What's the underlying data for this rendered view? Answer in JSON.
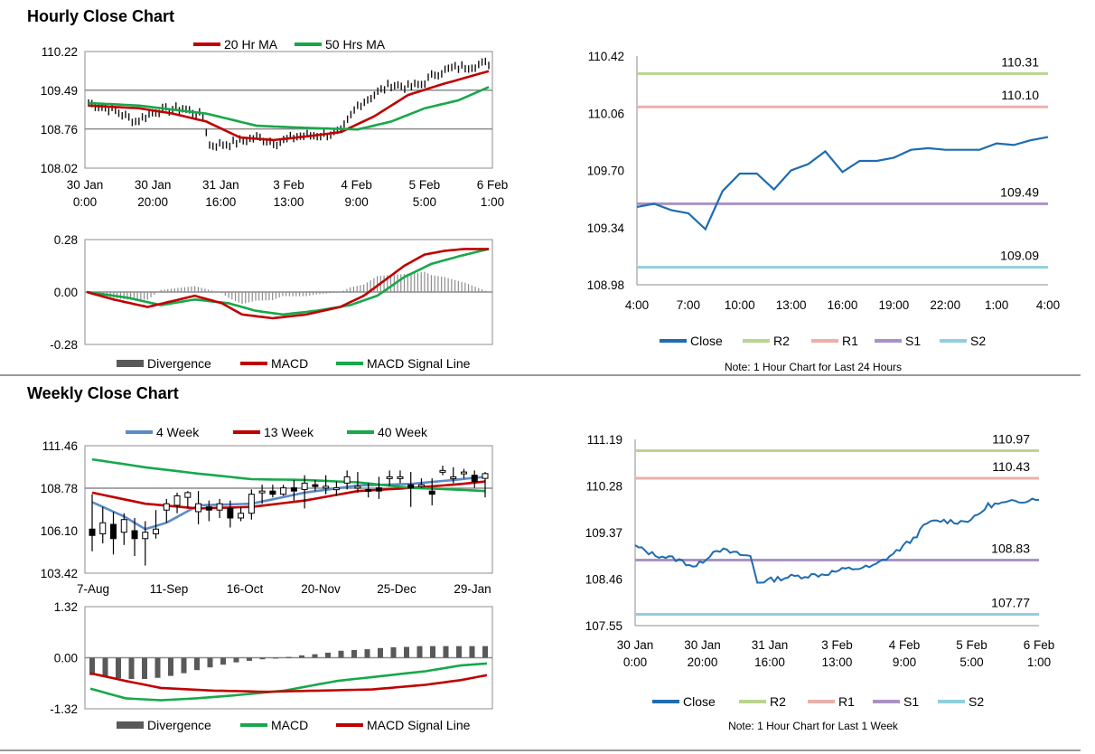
{
  "sections": {
    "hourly_title": "Hourly Close Chart",
    "weekly_title": "Weekly Close Chart"
  },
  "colors": {
    "close": "#1f6cb0",
    "r2": "#b9d48f",
    "r1": "#eab0aa",
    "s1": "#a992c4",
    "s2": "#8fd0dc",
    "ma_short": "#c00000",
    "ma_long": "#17a84a",
    "ma_4week": "#5b8bc6",
    "divergence": "#595959"
  },
  "chart_data": [
    {
      "id": "hourly_price",
      "type": "line",
      "title": "Hourly Close Chart",
      "legend": [
        "20 Hr MA",
        "50 Hrs MA"
      ],
      "x_tick_labels": [
        [
          "30 Jan",
          "0:00"
        ],
        [
          "30 Jan",
          "20:00"
        ],
        [
          "31 Jan",
          "16:00"
        ],
        [
          "3 Feb",
          "13:00"
        ],
        [
          "4 Feb",
          "9:00"
        ],
        [
          "5 Feb",
          "5:00"
        ],
        [
          "6 Feb",
          "1:00"
        ]
      ],
      "y_tick_labels": [
        "110.22",
        "109.49",
        "108.76",
        "108.02"
      ],
      "ylim": [
        108.02,
        110.22
      ],
      "n_points": 120,
      "close_keypoints": [
        [
          0,
          109.25
        ],
        [
          8,
          109.1
        ],
        [
          14,
          108.9
        ],
        [
          20,
          109.1
        ],
        [
          28,
          109.15
        ],
        [
          34,
          109.0
        ],
        [
          36,
          108.45
        ],
        [
          42,
          108.48
        ],
        [
          50,
          108.6
        ],
        [
          56,
          108.5
        ],
        [
          62,
          108.62
        ],
        [
          70,
          108.65
        ],
        [
          75,
          108.7
        ],
        [
          80,
          109.2
        ],
        [
          86,
          109.45
        ],
        [
          90,
          109.6
        ],
        [
          95,
          109.55
        ],
        [
          99,
          109.6
        ],
        [
          103,
          109.8
        ],
        [
          108,
          109.9
        ],
        [
          119,
          110.0
        ]
      ],
      "series": [
        {
          "name": "20 Hr MA",
          "keypoints": [
            [
              0,
              109.2
            ],
            [
              15,
              109.15
            ],
            [
              25,
              109.05
            ],
            [
              35,
              108.9
            ],
            [
              45,
              108.6
            ],
            [
              55,
              108.55
            ],
            [
              65,
              108.62
            ],
            [
              75,
              108.7
            ],
            [
              85,
              109.0
            ],
            [
              95,
              109.4
            ],
            [
              105,
              109.6
            ],
            [
              119,
              109.85
            ]
          ]
        },
        {
          "name": "50 Hrs MA",
          "keypoints": [
            [
              0,
              109.25
            ],
            [
              15,
              109.2
            ],
            [
              35,
              109.05
            ],
            [
              50,
              108.82
            ],
            [
              65,
              108.78
            ],
            [
              80,
              108.75
            ],
            [
              90,
              108.9
            ],
            [
              100,
              109.15
            ],
            [
              110,
              109.3
            ],
            [
              119,
              109.55
            ]
          ]
        }
      ]
    },
    {
      "id": "hourly_macd",
      "type": "line",
      "legend": [
        "Divergence",
        "MACD",
        "MACD Signal Line"
      ],
      "y_tick_labels": [
        "0.28",
        "0.00",
        "-0.28"
      ],
      "ylim": [
        -0.28,
        0.28
      ],
      "n_points": 120,
      "series": [
        {
          "name": "MACD",
          "keypoints": [
            [
              0,
              0.0
            ],
            [
              8,
              -0.04
            ],
            [
              18,
              -0.08
            ],
            [
              25,
              -0.05
            ],
            [
              32,
              -0.02
            ],
            [
              40,
              -0.06
            ],
            [
              46,
              -0.12
            ],
            [
              55,
              -0.14
            ],
            [
              65,
              -0.12
            ],
            [
              75,
              -0.08
            ],
            [
              82,
              -0.02
            ],
            [
              88,
              0.06
            ],
            [
              94,
              0.14
            ],
            [
              100,
              0.2
            ],
            [
              106,
              0.22
            ],
            [
              112,
              0.23
            ],
            [
              119,
              0.23
            ]
          ]
        },
        {
          "name": "MACD Signal Line",
          "keypoints": [
            [
              0,
              0.0
            ],
            [
              12,
              -0.03
            ],
            [
              22,
              -0.07
            ],
            [
              32,
              -0.04
            ],
            [
              42,
              -0.06
            ],
            [
              50,
              -0.1
            ],
            [
              58,
              -0.12
            ],
            [
              68,
              -0.1
            ],
            [
              78,
              -0.07
            ],
            [
              86,
              -0.02
            ],
            [
              94,
              0.08
            ],
            [
              102,
              0.15
            ],
            [
              110,
              0.19
            ],
            [
              119,
              0.23
            ]
          ]
        }
      ]
    },
    {
      "id": "hourly_24h",
      "type": "line",
      "x_tick_labels": [
        "4:00",
        "7:00",
        "10:00",
        "13:00",
        "16:00",
        "19:00",
        "22:00",
        "1:00",
        "4:00"
      ],
      "y_tick_labels": [
        "110.42",
        "110.06",
        "109.70",
        "109.34",
        "108.98"
      ],
      "ylim": [
        108.98,
        110.42
      ],
      "levels": [
        {
          "name": "R2",
          "label": "110.31",
          "value": 110.31
        },
        {
          "name": "R1",
          "label": "110.10",
          "value": 110.1
        },
        {
          "name": "S1",
          "label": "109.49",
          "value": 109.49
        },
        {
          "name": "S2",
          "label": "109.09",
          "value": 109.09
        }
      ],
      "close_values": [
        109.47,
        109.49,
        109.45,
        109.43,
        109.33,
        109.57,
        109.68,
        109.68,
        109.58,
        109.7,
        109.74,
        109.82,
        109.69,
        109.76,
        109.76,
        109.78,
        109.83,
        109.84,
        109.83,
        109.83,
        109.83,
        109.87,
        109.86,
        109.89,
        109.91
      ],
      "legend": [
        "Close",
        "R2",
        "R1",
        "S1",
        "S2"
      ],
      "note": "Note: 1 Hour Chart for Last 24 Hours"
    },
    {
      "id": "weekly_price",
      "type": "line",
      "title": "Weekly Close Chart",
      "legend": [
        "4 Week",
        "13 Week",
        "40 Week"
      ],
      "x_tick_labels": [
        "7-Aug",
        "11-Sep",
        "16-Oct",
        "20-Nov",
        "25-Dec",
        "29-Jan"
      ],
      "y_tick_labels": [
        "111.46",
        "108.78",
        "106.10",
        "103.42"
      ],
      "ylim": [
        103.42,
        111.46
      ],
      "candles": [
        {
          "o": 106.2,
          "c": 105.8,
          "h": 108.4,
          "l": 104.8
        },
        {
          "o": 105.9,
          "c": 106.6,
          "h": 107.6,
          "l": 105.3
        },
        {
          "o": 106.5,
          "c": 105.6,
          "h": 107.3,
          "l": 104.6
        },
        {
          "o": 106.0,
          "c": 106.8,
          "h": 107.2,
          "l": 105.2
        },
        {
          "o": 106.1,
          "c": 105.6,
          "h": 106.9,
          "l": 104.5
        },
        {
          "o": 105.6,
          "c": 106.0,
          "h": 106.7,
          "l": 103.9
        },
        {
          "o": 105.9,
          "c": 106.2,
          "h": 107.4,
          "l": 105.6
        },
        {
          "o": 107.4,
          "c": 107.8,
          "h": 108.1,
          "l": 106.6
        },
        {
          "o": 107.7,
          "c": 108.3,
          "h": 108.5,
          "l": 107.2
        },
        {
          "o": 108.2,
          "c": 108.5,
          "h": 108.6,
          "l": 107.5
        },
        {
          "o": 107.3,
          "c": 107.8,
          "h": 108.6,
          "l": 106.5
        },
        {
          "o": 107.6,
          "c": 107.4,
          "h": 108.0,
          "l": 106.7
        },
        {
          "o": 107.4,
          "c": 107.8,
          "h": 108.1,
          "l": 106.9
        },
        {
          "o": 107.5,
          "c": 106.9,
          "h": 108.0,
          "l": 106.3
        },
        {
          "o": 106.9,
          "c": 107.2,
          "h": 107.6,
          "l": 106.7
        },
        {
          "o": 107.2,
          "c": 108.4,
          "h": 108.7,
          "l": 106.8
        },
        {
          "o": 108.5,
          "c": 108.6,
          "h": 109.0,
          "l": 107.8
        },
        {
          "o": 108.6,
          "c": 108.4,
          "h": 109.0,
          "l": 108.2
        },
        {
          "o": 108.4,
          "c": 108.8,
          "h": 109.0,
          "l": 108.3
        },
        {
          "o": 108.8,
          "c": 108.6,
          "h": 109.3,
          "l": 108.0
        },
        {
          "o": 108.7,
          "c": 109.1,
          "h": 109.6,
          "l": 107.5
        },
        {
          "o": 109.0,
          "c": 108.9,
          "h": 109.3,
          "l": 108.6
        },
        {
          "o": 108.9,
          "c": 108.9,
          "h": 109.6,
          "l": 108.4
        },
        {
          "o": 108.7,
          "c": 108.8,
          "h": 109.2,
          "l": 108.3
        },
        {
          "o": 109.1,
          "c": 109.5,
          "h": 109.9,
          "l": 108.7
        },
        {
          "o": 108.9,
          "c": 108.9,
          "h": 109.8,
          "l": 108.5
        },
        {
          "o": 108.7,
          "c": 108.6,
          "h": 109.1,
          "l": 108.2
        },
        {
          "o": 108.8,
          "c": 108.6,
          "h": 109.5,
          "l": 108.1
        },
        {
          "o": 109.5,
          "c": 109.5,
          "h": 109.9,
          "l": 108.9
        },
        {
          "o": 109.4,
          "c": 109.5,
          "h": 109.9,
          "l": 109.1
        },
        {
          "o": 109.0,
          "c": 108.8,
          "h": 109.8,
          "l": 107.6
        },
        {
          "o": 108.9,
          "c": 109.0,
          "h": 109.4,
          "l": 108.8
        },
        {
          "o": 108.6,
          "c": 108.4,
          "h": 109.4,
          "l": 107.7
        },
        {
          "o": 109.8,
          "c": 109.9,
          "h": 110.2,
          "l": 109.6
        },
        {
          "o": 109.5,
          "c": 109.5,
          "h": 110.1,
          "l": 109.1
        },
        {
          "o": 109.7,
          "c": 109.8,
          "h": 110.0,
          "l": 109.4
        },
        {
          "o": 109.6,
          "c": 109.2,
          "h": 109.9,
          "l": 108.8
        },
        {
          "o": 109.4,
          "c": 109.7,
          "h": 109.8,
          "l": 108.2
        }
      ],
      "series": [
        {
          "name": "4 Week",
          "keypoints": [
            [
              0,
              107.9
            ],
            [
              3,
              107.0
            ],
            [
              5,
              106.2
            ],
            [
              7,
              106.6
            ],
            [
              10,
              107.7
            ],
            [
              15,
              107.8
            ],
            [
              20,
              108.5
            ],
            [
              25,
              108.95
            ],
            [
              30,
              109.05
            ],
            [
              34,
              109.3
            ],
            [
              37,
              109.5
            ]
          ]
        },
        {
          "name": "13 Week",
          "keypoints": [
            [
              0,
              108.5
            ],
            [
              5,
              107.8
            ],
            [
              10,
              107.5
            ],
            [
              15,
              107.6
            ],
            [
              20,
              108.0
            ],
            [
              25,
              108.6
            ],
            [
              30,
              108.8
            ],
            [
              34,
              109.0
            ],
            [
              37,
              109.2
            ]
          ]
        },
        {
          "name": "40 Week",
          "keypoints": [
            [
              0,
              110.6
            ],
            [
              5,
              110.1
            ],
            [
              10,
              109.7
            ],
            [
              15,
              109.35
            ],
            [
              20,
              109.3
            ],
            [
              25,
              109.15
            ],
            [
              30,
              108.8
            ],
            [
              34,
              108.7
            ],
            [
              37,
              108.6
            ]
          ]
        }
      ]
    },
    {
      "id": "weekly_macd",
      "type": "line",
      "legend": [
        "Divergence",
        "MACD",
        "MACD Signal Line"
      ],
      "y_tick_labels": [
        "1.32",
        "0.00",
        "-1.32"
      ],
      "ylim": [
        -1.32,
        1.32
      ],
      "divergence": [
        -0.45,
        -0.5,
        -0.53,
        -0.55,
        -0.55,
        -0.52,
        -0.47,
        -0.4,
        -0.32,
        -0.25,
        -0.18,
        -0.12,
        -0.08,
        -0.04,
        -0.02,
        0.02,
        0.06,
        0.09,
        0.13,
        0.18,
        0.2,
        0.22,
        0.25,
        0.27,
        0.28,
        0.3,
        0.3,
        0.3,
        0.3,
        0.3,
        0.3
      ],
      "series": [
        {
          "name": "MACD",
          "keypoints": [
            [
              0,
              -0.8
            ],
            [
              4,
              -1.05
            ],
            [
              8,
              -1.1
            ],
            [
              12,
              -1.05
            ],
            [
              16,
              -0.98
            ],
            [
              22,
              -0.85
            ],
            [
              28,
              -0.6
            ],
            [
              34,
              -0.45
            ],
            [
              38,
              -0.35
            ],
            [
              42,
              -0.2
            ],
            [
              45,
              -0.15
            ]
          ]
        },
        {
          "name": "MACD Signal Line",
          "keypoints": [
            [
              0,
              -0.4
            ],
            [
              4,
              -0.6
            ],
            [
              8,
              -0.78
            ],
            [
              14,
              -0.85
            ],
            [
              20,
              -0.88
            ],
            [
              26,
              -0.85
            ],
            [
              32,
              -0.82
            ],
            [
              38,
              -0.7
            ],
            [
              42,
              -0.58
            ],
            [
              45,
              -0.45
            ]
          ]
        }
      ]
    },
    {
      "id": "weekly_1w",
      "type": "line",
      "x_tick_labels": [
        [
          "30 Jan",
          "0:00"
        ],
        [
          "30 Jan",
          "20:00"
        ],
        [
          "31 Jan",
          "16:00"
        ],
        [
          "3 Feb",
          "13:00"
        ],
        [
          "4 Feb",
          "9:00"
        ],
        [
          "5 Feb",
          "5:00"
        ],
        [
          "6 Feb",
          "1:00"
        ]
      ],
      "y_tick_labels": [
        "111.19",
        "110.28",
        "109.37",
        "108.46",
        "107.55"
      ],
      "ylim": [
        107.55,
        111.19
      ],
      "levels": [
        {
          "name": "R2",
          "label": "110.97",
          "value": 110.97
        },
        {
          "name": "R1",
          "label": "110.43",
          "value": 110.43
        },
        {
          "name": "S1",
          "label": "108.83",
          "value": 108.83
        },
        {
          "name": "S2",
          "label": "107.77",
          "value": 107.77
        }
      ],
      "n_points": 120,
      "close_keypoints": [
        [
          0,
          109.1
        ],
        [
          5,
          108.95
        ],
        [
          12,
          108.85
        ],
        [
          18,
          108.7
        ],
        [
          24,
          109.05
        ],
        [
          30,
          108.95
        ],
        [
          34,
          108.9
        ],
        [
          36,
          108.4
        ],
        [
          45,
          108.5
        ],
        [
          55,
          108.55
        ],
        [
          62,
          108.65
        ],
        [
          70,
          108.7
        ],
        [
          76,
          108.95
        ],
        [
          82,
          109.25
        ],
        [
          86,
          109.55
        ],
        [
          90,
          109.6
        ],
        [
          96,
          109.58
        ],
        [
          100,
          109.65
        ],
        [
          104,
          109.9
        ],
        [
          110,
          109.95
        ],
        [
          119,
          110.05
        ]
      ],
      "legend": [
        "Close",
        "R2",
        "R1",
        "S1",
        "S2"
      ],
      "note": "Note: 1 Hour Chart for Last 1 Week"
    }
  ]
}
